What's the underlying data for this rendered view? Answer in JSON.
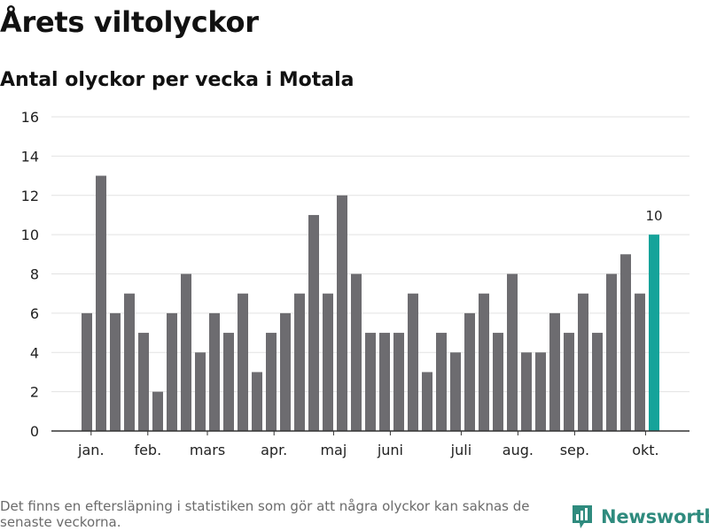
{
  "header": {
    "title": "Årets viltolyckor",
    "subtitle": "Antal olyckor per vecka i Motala"
  },
  "chart_data": {
    "type": "bar",
    "title": "Årets viltolyckor",
    "subtitle": "Antal olyckor per vecka i Motala",
    "xlabel": "",
    "ylabel": "",
    "ylim": [
      0,
      16
    ],
    "yticks": [
      0,
      2,
      4,
      6,
      8,
      10,
      12,
      14,
      16
    ],
    "grid": true,
    "values": [
      6,
      13,
      6,
      7,
      5,
      2,
      6,
      8,
      4,
      6,
      5,
      7,
      3,
      5,
      6,
      7,
      11,
      7,
      12,
      8,
      5,
      5,
      5,
      7,
      3,
      5,
      4,
      6,
      7,
      5,
      8,
      4,
      4,
      6,
      5,
      7,
      5,
      8,
      9,
      7,
      10
    ],
    "month_labels": [
      {
        "label": "jan.",
        "week_index": 0.3
      },
      {
        "label": "feb.",
        "week_index": 4.3
      },
      {
        "label": "mars",
        "week_index": 8.5
      },
      {
        "label": "apr.",
        "week_index": 13.2
      },
      {
        "label": "maj",
        "week_index": 17.4
      },
      {
        "label": "juni",
        "week_index": 21.4
      },
      {
        "label": "juli",
        "week_index": 26.4
      },
      {
        "label": "aug.",
        "week_index": 30.4
      },
      {
        "label": "sep.",
        "week_index": 34.4
      },
      {
        "label": "okt.",
        "week_index": 39.4
      }
    ],
    "highlight_index": 40,
    "highlight_label": "10",
    "bar_color": "#6d6c70",
    "highlight_color": "#15a39a"
  },
  "footer": {
    "note": "Det finns en eftersläpning i statistiken som gör att några olyckor kan saknas de senaste veckorna.",
    "brand": "Newsworthy",
    "brand_icon": "newsworthy-logo-icon",
    "brand_color": "#2f8b7e"
  }
}
